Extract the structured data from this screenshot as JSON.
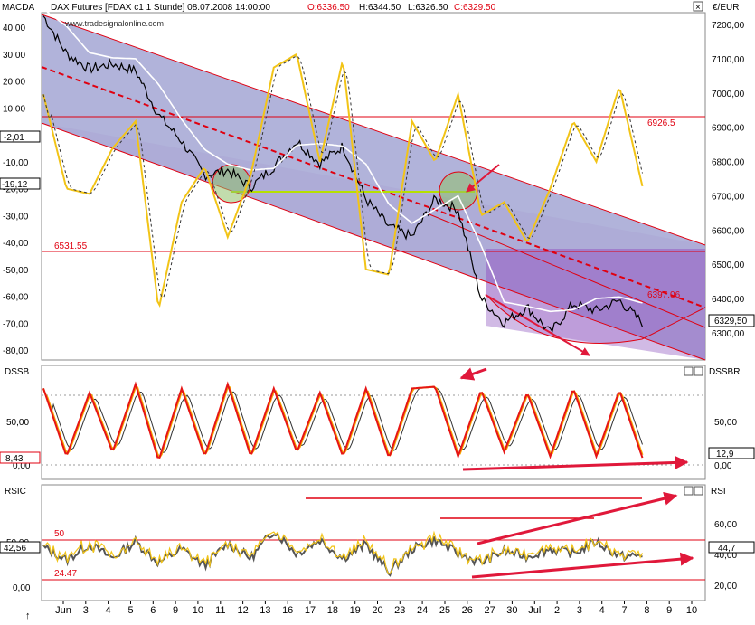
{
  "header": {
    "title": "DAX Futures [FDAX c1  1 Stunde] 08.07.2008 14:00:00",
    "open": "O:6336.50",
    "high": "H:6344.50",
    "low": "L:6326.50",
    "close": "C:6329.50",
    "watermark": "www.tradesignalonline.com",
    "close_icon": "close-icon",
    "close_glyph": "×",
    "maximize_glyph": "□"
  },
  "colors": {
    "channel_fill": "#a3a6d4",
    "lower_channel_fill": "#a998cf",
    "triangle_fill": "#9a66c6",
    "price": "#000000",
    "ma_white": "#ffffff",
    "macd_yellow": "#f2c417",
    "red_line": "#e00010",
    "arrow": "#e0183a",
    "green_circle": "#8fbf6a",
    "green_line": "#b6e000",
    "stoch_red": "#e61515",
    "stoch_orange": "#f7a600",
    "rsi_gray": "#555555"
  },
  "top_panel": {
    "left_label": "MACDA",
    "right_label": "€/EUR",
    "left_ticks": [
      "40,00",
      "30,00",
      "20,00",
      "10,00",
      "-10,00",
      "-20,00",
      "-30,00",
      "-40,00",
      "-50,00",
      "-60,00",
      "-70,00",
      "-80,00"
    ],
    "left_tick_values": [
      40,
      30,
      20,
      10,
      -10,
      -20,
      -30,
      -40,
      -50,
      -60,
      -70,
      -80
    ],
    "right_ticks": [
      "7200,00",
      "7100,00",
      "7000,00",
      "6900,00",
      "6800,00",
      "6700,00",
      "6600,00",
      "6500,00",
      "6400,00",
      "6300,00"
    ],
    "right_tick_values": [
      7200,
      7100,
      7000,
      6900,
      6800,
      6700,
      6600,
      6500,
      6400,
      6300
    ],
    "left_markers": [
      {
        "text": "-2,01",
        "value": -2.01
      },
      {
        "text": "-19,12",
        "value": -19.12
      }
    ],
    "right_marker": {
      "text": "6329,50",
      "value": 6329.5
    },
    "annotations": [
      {
        "text": "6926.5",
        "value": 6926.5
      },
      {
        "text": "6531.55",
        "value": 6531.55
      },
      {
        "text": "6397.06",
        "value": 6397.06
      }
    ]
  },
  "middle_panel": {
    "left_label": "DSSB",
    "right_label": "DSSBR",
    "left_ticks": [
      "50,00",
      "0,00"
    ],
    "right_ticks": [
      "50,00",
      "0,00"
    ],
    "left_marker": "8,43",
    "right_marker": "12,9"
  },
  "bottom_panel": {
    "left_label": "RSIC",
    "right_label": "RSI",
    "left_ticks": [
      "50,00",
      "0,00"
    ],
    "right_ticks": [
      "60,00",
      "40,00",
      "20,00"
    ],
    "left_marker": "42,56",
    "right_marker": "44,7",
    "annotations": [
      "50",
      "24.47"
    ]
  },
  "x_axis": {
    "labels": [
      "Jun",
      "3",
      "4",
      "5",
      "6",
      "9",
      "10",
      "11",
      "12",
      "13",
      "16",
      "17",
      "18",
      "19",
      "20",
      "23",
      "24",
      "25",
      "26",
      "27",
      "30",
      "Jul",
      "2",
      "3",
      "4",
      "7",
      "8",
      "9",
      "10"
    ],
    "pointer_glyph": "↑"
  },
  "chart_data": {
    "type": "line",
    "title": "DAX Futures [FDAX c1  1 Stunde] 08.07.2008 14:00:00",
    "xlabel": "",
    "ylabel": "€/EUR",
    "x": [
      "Jun",
      "3",
      "4",
      "5",
      "6",
      "9",
      "10",
      "11",
      "12",
      "13",
      "16",
      "17",
      "18",
      "19",
      "20",
      "23",
      "24",
      "25",
      "26",
      "27",
      "30",
      "Jul",
      "2",
      "3",
      "4",
      "7",
      "8"
    ],
    "ylim": [
      6230,
      7240
    ],
    "grid": false,
    "series": [
      {
        "name": "Close",
        "values": [
          7225,
          7115,
          7070,
          7085,
          7065,
          6935,
          6860,
          6760,
          6775,
          6725,
          6785,
          6860,
          6795,
          6845,
          6690,
          6610,
          6580,
          6690,
          6660,
          6400,
          6330,
          6375,
          6300,
          6385,
          6365,
          6395,
          6329.5
        ]
      },
      {
        "name": "MACDA",
        "values": [
          15,
          -20,
          -22,
          -5,
          5,
          -65,
          -25,
          -12,
          -38,
          -15,
          25,
          30,
          -10,
          28,
          -50,
          -52,
          5,
          -10,
          15,
          -30,
          -25,
          -40,
          -20,
          5,
          -10,
          18,
          -19.12
        ]
      },
      {
        "name": "DSSB",
        "values": [
          90,
          10,
          85,
          15,
          95,
          5,
          90,
          10,
          95,
          10,
          90,
          15,
          85,
          10,
          90,
          8,
          90,
          92,
          10,
          88,
          15,
          85,
          10,
          90,
          10,
          88,
          8.43
        ]
      },
      {
        "name": "RSIC",
        "values": [
          52,
          38,
          55,
          40,
          58,
          35,
          50,
          32,
          56,
          40,
          70,
          45,
          60,
          40,
          55,
          25,
          50,
          60,
          45,
          35,
          48,
          42,
          50,
          45,
          58,
          42,
          42.56
        ]
      }
    ],
    "horizontal_lines": [
      {
        "label": "6926.5",
        "value": 6926.5
      },
      {
        "label": "6531.55",
        "value": 6531.55
      }
    ]
  }
}
